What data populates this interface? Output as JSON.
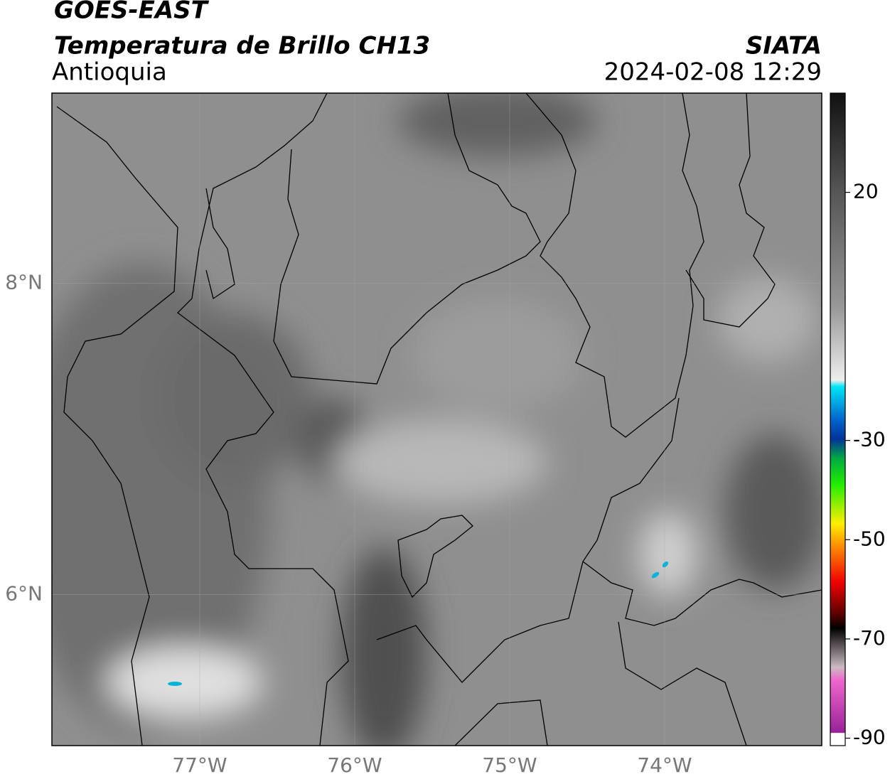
{
  "header": {
    "title": "GOES-EAST",
    "subtitle": "Temperatura de Brillo CH13",
    "region": "Antioquia",
    "source": "SIATA",
    "timestamp": "2024-02-08 12:29"
  },
  "map": {
    "xlim": [
      -77.954,
      -72.986
    ],
    "ylim": [
      5.03,
      9.22
    ],
    "xticks": [
      {
        "value": -77,
        "label": "77°W"
      },
      {
        "value": -76,
        "label": "76°W"
      },
      {
        "value": -75,
        "label": "75°W"
      },
      {
        "value": -74,
        "label": "74°W"
      }
    ],
    "yticks": [
      {
        "value": 8,
        "label": "8°N"
      },
      {
        "value": 6,
        "label": "6°N"
      }
    ],
    "grid": true
  },
  "colorbar": {
    "lim": [
      -91.5,
      40
    ],
    "ticks": [
      20,
      -30,
      -50,
      -70,
      -90
    ]
  }
}
